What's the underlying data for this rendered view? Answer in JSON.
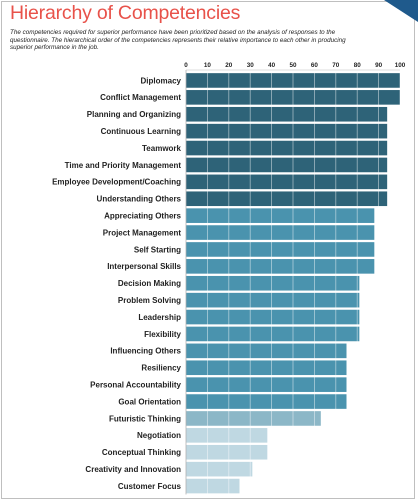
{
  "page": {
    "title": "Hierarchy of Competencies",
    "description": "The competencies required for superior performance have been prioritized based on the analysis of responses to the questionnaire.  The hierarchical order of the competencies represents their relative importance to each other in producing superior performance in the job."
  },
  "colors": {
    "title": "#e8524a",
    "tier1": "#2e6378",
    "tier2": "#4a93ae",
    "tier3": "#8cb7c7",
    "tier4": "#bfd8e2",
    "corner": "#1f5a8c"
  },
  "chart_data": {
    "type": "bar",
    "orientation": "horizontal",
    "xlim": [
      0,
      100
    ],
    "xticks": [
      "0",
      "10",
      "20",
      "30",
      "40",
      "50",
      "60",
      "70",
      "80",
      "90",
      "100"
    ],
    "grid": true,
    "categories": [
      "Diplomacy",
      "Conflict Management",
      "Planning and Organizing",
      "Continuous Learning",
      "Teamwork",
      "Time and Priority Management",
      "Employee Development/Coaching",
      "Understanding Others",
      "Appreciating Others",
      "Project Management",
      "Self Starting",
      "Interpersonal Skills",
      "Decision Making",
      "Problem Solving",
      "Leadership",
      "Flexibility",
      "Influencing Others",
      "Resiliency",
      "Personal Accountability",
      "Goal Orientation",
      "Futuristic Thinking",
      "Negotiation",
      "Conceptual Thinking",
      "Creativity and Innovation",
      "Customer Focus"
    ],
    "values": [
      100,
      100,
      94,
      94,
      94,
      94,
      94,
      94,
      88,
      88,
      88,
      88,
      81,
      81,
      81,
      81,
      75,
      75,
      75,
      75,
      63,
      38,
      38,
      31,
      25
    ],
    "tiers": [
      1,
      1,
      1,
      1,
      1,
      1,
      1,
      1,
      2,
      2,
      2,
      2,
      2,
      2,
      2,
      2,
      2,
      2,
      2,
      2,
      3,
      4,
      4,
      4,
      4
    ]
  }
}
